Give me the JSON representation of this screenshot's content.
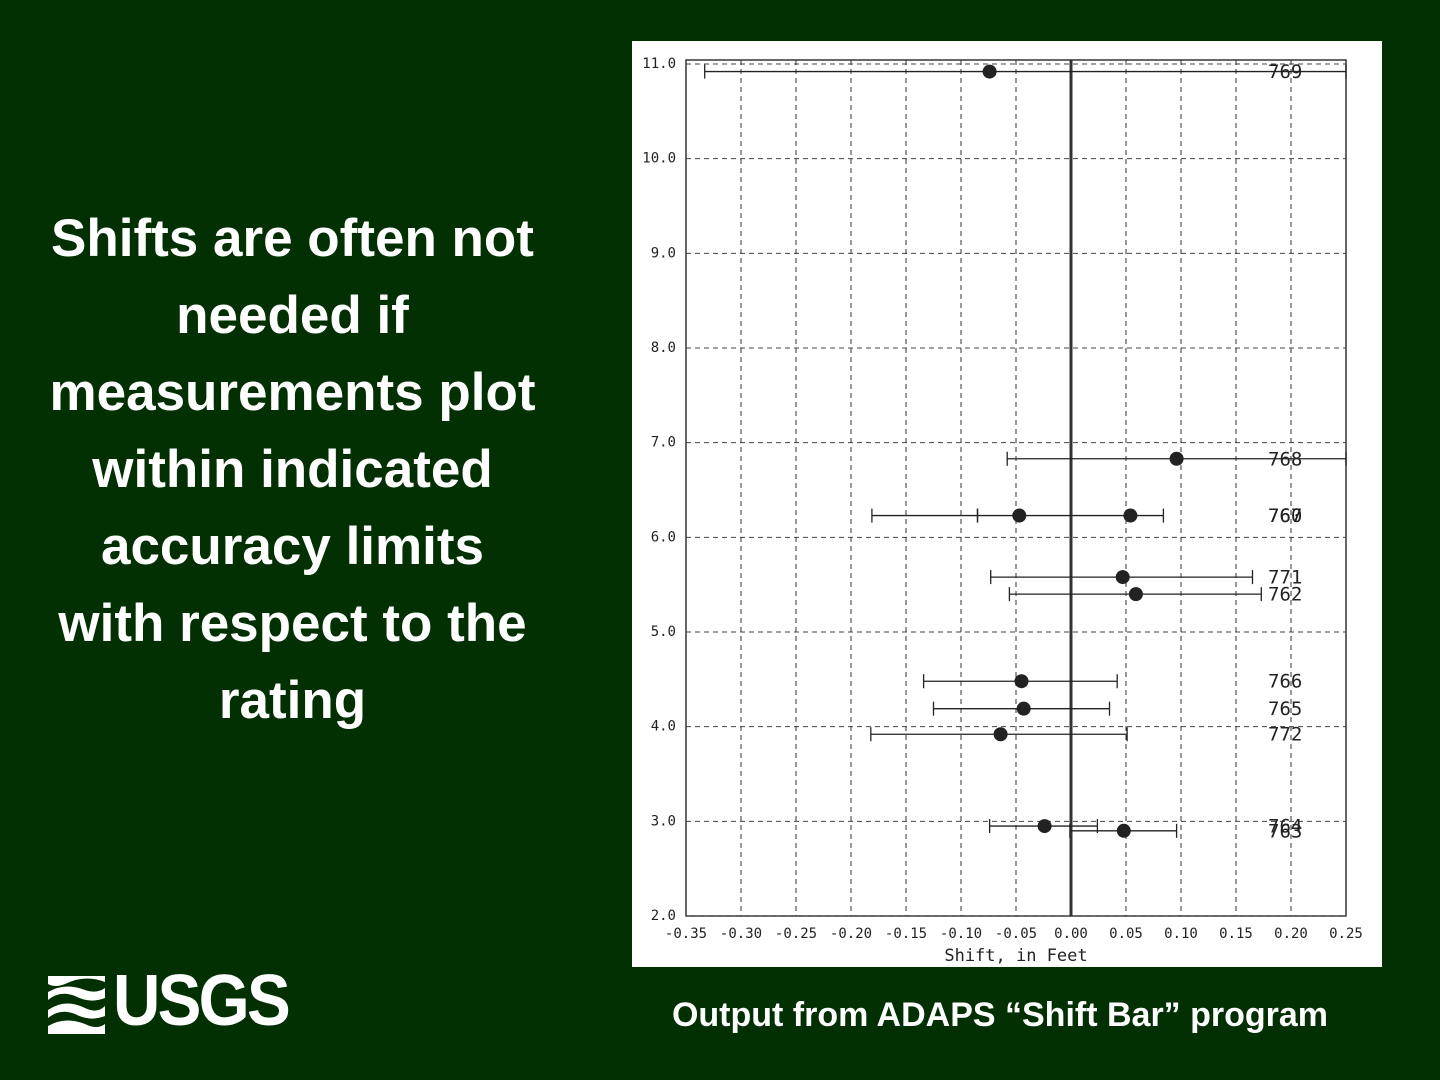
{
  "slide_text": "Shifts are often not needed if measurements plot within indicated accuracy limits with respect to the rating",
  "caption": "Output from ADAPS “Shift Bar” program",
  "logo": "USGS",
  "chart_data": {
    "type": "errorbar",
    "xlabel": "Shift, in Feet",
    "xlim": [
      -0.35,
      0.25
    ],
    "xticks": [
      {
        "value": -0.35,
        "label": "-0.35"
      },
      {
        "value": -0.3,
        "label": "-0.30"
      },
      {
        "value": -0.25,
        "label": "-0.25"
      },
      {
        "value": -0.2,
        "label": "-0.20"
      },
      {
        "value": -0.15,
        "label": "-0.15"
      },
      {
        "value": -0.1,
        "label": "-0.10"
      },
      {
        "value": -0.05,
        "label": "-0.05"
      },
      {
        "value": 0,
        "label": "0.00"
      },
      {
        "value": 0.05,
        "label": "0.05"
      },
      {
        "value": 0.1,
        "label": "0.10"
      },
      {
        "value": 0.15,
        "label": "0.15"
      },
      {
        "value": 0.2,
        "label": "0.20"
      },
      {
        "value": 0.25,
        "label": "0.25"
      }
    ],
    "ylim": [
      2,
      11
    ],
    "yticks": [
      {
        "value": 2,
        "label": "2.0"
      },
      {
        "value": 3,
        "label": "3.0"
      },
      {
        "value": 4,
        "label": "4.0"
      },
      {
        "value": 5,
        "label": "5.0"
      },
      {
        "value": 6,
        "label": "6.0"
      },
      {
        "value": 7,
        "label": "7.0"
      },
      {
        "value": 8,
        "label": "8.0"
      },
      {
        "value": 9,
        "label": "9.0"
      },
      {
        "value": 10,
        "label": "10.0"
      },
      {
        "value": 11,
        "label": "11.0"
      }
    ],
    "grid": true,
    "color": "#222222",
    "labels": [
      "769",
      "768",
      "767",
      "760",
      "771",
      "762",
      "766",
      "765",
      "772",
      "764",
      "763"
    ],
    "x": [
      -0.074,
      0.096,
      -0.047,
      0.054,
      0.047,
      0.059,
      -0.045,
      -0.043,
      -0.064,
      -0.024,
      0.048
    ],
    "y": [
      10.92,
      6.83,
      6.23,
      6.23,
      5.58,
      5.4,
      4.48,
      4.19,
      3.92,
      2.95,
      2.9
    ],
    "lower": [
      -0.333,
      -0.058,
      -0.181,
      -0.085,
      -0.073,
      -0.056,
      -0.134,
      -0.125,
      -0.182,
      -0.074,
      -0.001
    ],
    "upper": [
      0.25,
      0.25,
      -0.085,
      0.084,
      0.165,
      0.173,
      0.042,
      0.035,
      0.051,
      0.024,
      0.096
    ]
  }
}
